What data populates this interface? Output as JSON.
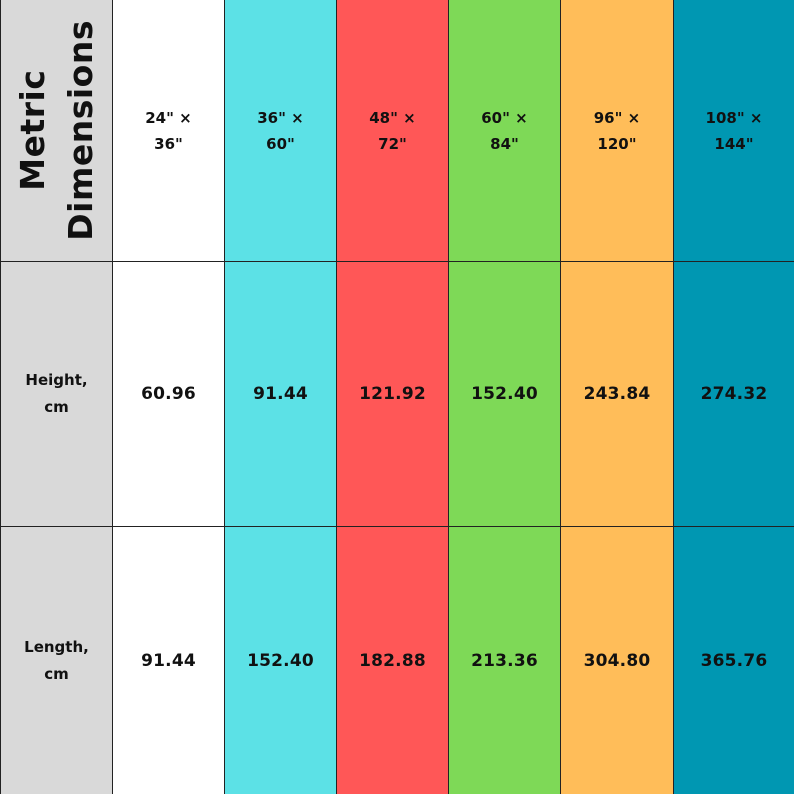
{
  "table": {
    "corner_label": "Metric\nDimensions",
    "row_labels": [
      "Height,\ncm",
      "Length,\ncm"
    ],
    "sizes": [
      "24\" ×\n36\"",
      "36\" ×\n60\"",
      "48\" ×\n72\"",
      "60\" ×\n84\"",
      "96\" ×\n120\"",
      "108\" ×\n144\""
    ],
    "height_cm": [
      "60.96",
      "91.44",
      "121.92",
      "152.40",
      "243.84",
      "274.32"
    ],
    "length_cm": [
      "91.44",
      "152.40",
      "182.88",
      "213.36",
      "304.80",
      "365.76"
    ]
  },
  "colors": {
    "label_bg": "#d9d9d9",
    "col1": "#ffffff",
    "col2": "#5ce1e6",
    "col3": "#ff5757",
    "col4": "#7ed957",
    "col5": "#ffbd59",
    "col6": "#0097b2"
  }
}
